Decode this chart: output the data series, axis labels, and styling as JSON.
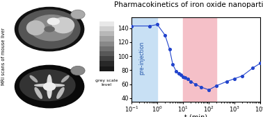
{
  "title": "Pharmacokinetics of iron oxide nanoparticles",
  "xlabel": "t (min)",
  "xlim_log": [
    -1,
    4
  ],
  "ylim": [
    35,
    155
  ],
  "yticks": [
    40,
    60,
    80,
    100,
    120,
    140
  ],
  "preinjection_xspan": [
    0.1,
    1.0
  ],
  "pink_xspan": [
    10,
    200
  ],
  "preinjection_color": "#c8e0f4",
  "pink_color": "#f5c0c8",
  "line_color": "#2244cc",
  "dot_color": "#2244cc",
  "data_x": [
    0.1,
    0.5,
    1.0,
    2.0,
    3.0,
    4.0,
    5.5,
    7.0,
    8.5,
    10.0,
    12.0,
    15.0,
    20.0,
    30.0,
    50.0,
    100.0,
    200.0,
    500.0,
    1000.0,
    2000.0,
    5000.0,
    10000.0
  ],
  "data_y": [
    143,
    143,
    145,
    130,
    110,
    88,
    78,
    75,
    73,
    71,
    70,
    68,
    64,
    60,
    56,
    52,
    58,
    64,
    68,
    72,
    83,
    90
  ],
  "preinjection_label": "pre-injection",
  "grey_scale_colors": [
    "#e8e8e8",
    "#d0d0d0",
    "#b8b8b8",
    "#a0a0a0",
    "#888888",
    "#707070",
    "#585858",
    "#404040",
    "#282828",
    "#181818"
  ],
  "grey_scale_label": "grey scale\nlevel",
  "title_fontsize": 7.5,
  "axis_fontsize": 7,
  "tick_fontsize": 6,
  "mri_top_bg": "#aac8e0",
  "mri_bot_bg": "#eeb0bc",
  "side_label": "MRI scans of mouse liver",
  "fig_bg": "#ffffff"
}
